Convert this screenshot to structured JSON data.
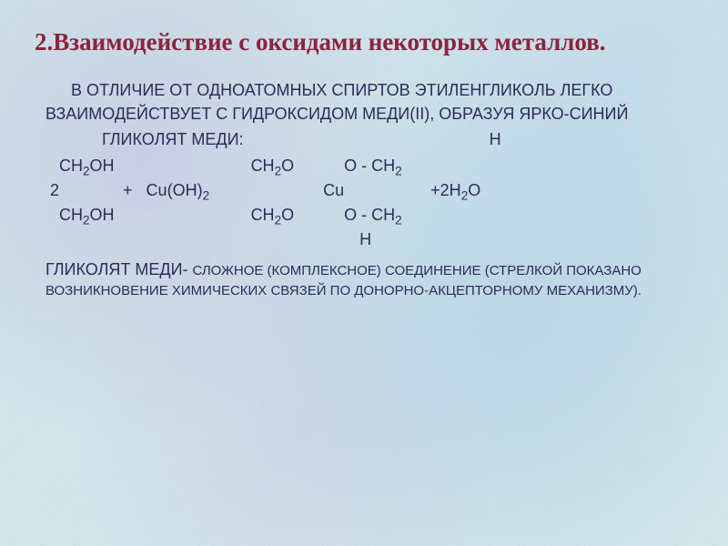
{
  "title_color": "#8b1f3a",
  "body_color": "#2a2855",
  "fontsize_title": 27,
  "fontsize_body_large": 18,
  "fontsize_body_small": 15,
  "title": "2.Взаимодействие с оксидами некоторых металлов.",
  "intro": "В ОТЛИЧИЕ ОТ ОДНОАТОМНЫХ СПИРТОВ ЭТИЛЕНГЛИКОЛЬ ЛЕГКО ВЗАИМОДЕЙСТВУЕТ С ГИДРОКСИДОМ МЕДИ(II), ОБРАЗУЯ ЯРКО-СИНИЙ",
  "intro_cont": "ГЛИКОЛЯТ МЕДИ:",
  "eq": {
    "r1_h_right": "H",
    "r2_left": "CH",
    "r2_left2": "OH",
    "r2_mid": "CH",
    "r2_mid2": "O",
    "r2_right": "O - CH",
    "r3_num": "2",
    "r3_plus_cu": "+   Cu(OH)",
    "r3_cu": "Cu",
    "r3_tail": "+2H",
    "r3_tail2": "O",
    "r4_left": "CH",
    "r4_left2": "OH",
    "r4_mid": "CH",
    "r4_mid2": "O",
    "r4_right": "O - CH",
    "r5_h_right": "H"
  },
  "glyc_lead": "ГЛИКОЛЯТ МЕДИ- ",
  "glyc_rest": "СЛОЖНОЕ (КОМПЛЕКСНОЕ) СОЕДИНЕНИЕ (СТРЕЛКОЙ ПОКАЗАНО ВОЗНИКНОВЕНИЕ ХИМИЧЕСКИХ СВЯЗЕЙ ПО ДОНОРНО-АКЦЕПТОРНОМУ МЕХАНИЗМУ)."
}
